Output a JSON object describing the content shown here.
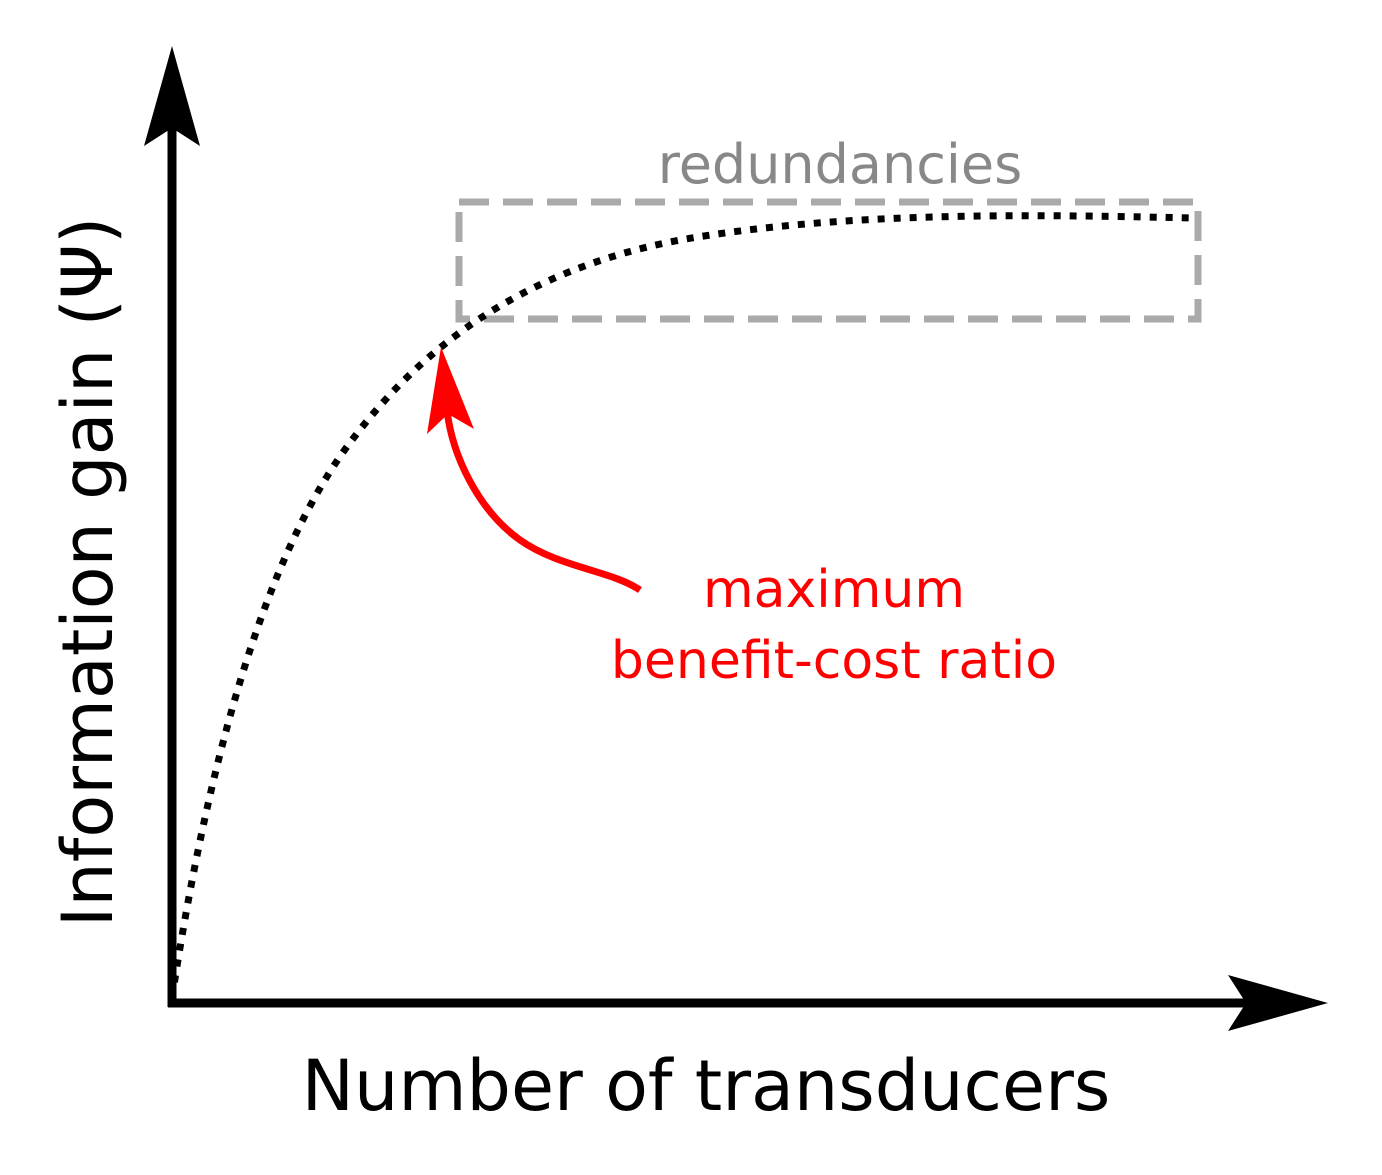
{
  "axes": {
    "x_label": "Number of transducers",
    "y_label": "Information gain (Ψ)"
  },
  "curve": {
    "style": "dotted",
    "shape": "saturating-growth"
  },
  "redundancy_box": {
    "label": "redundancies",
    "color": "#aaaaaa",
    "label_color": "#888888"
  },
  "annotation": {
    "line1": "maximum",
    "line2": "benefit-cost ratio",
    "color": "#ff0000"
  }
}
